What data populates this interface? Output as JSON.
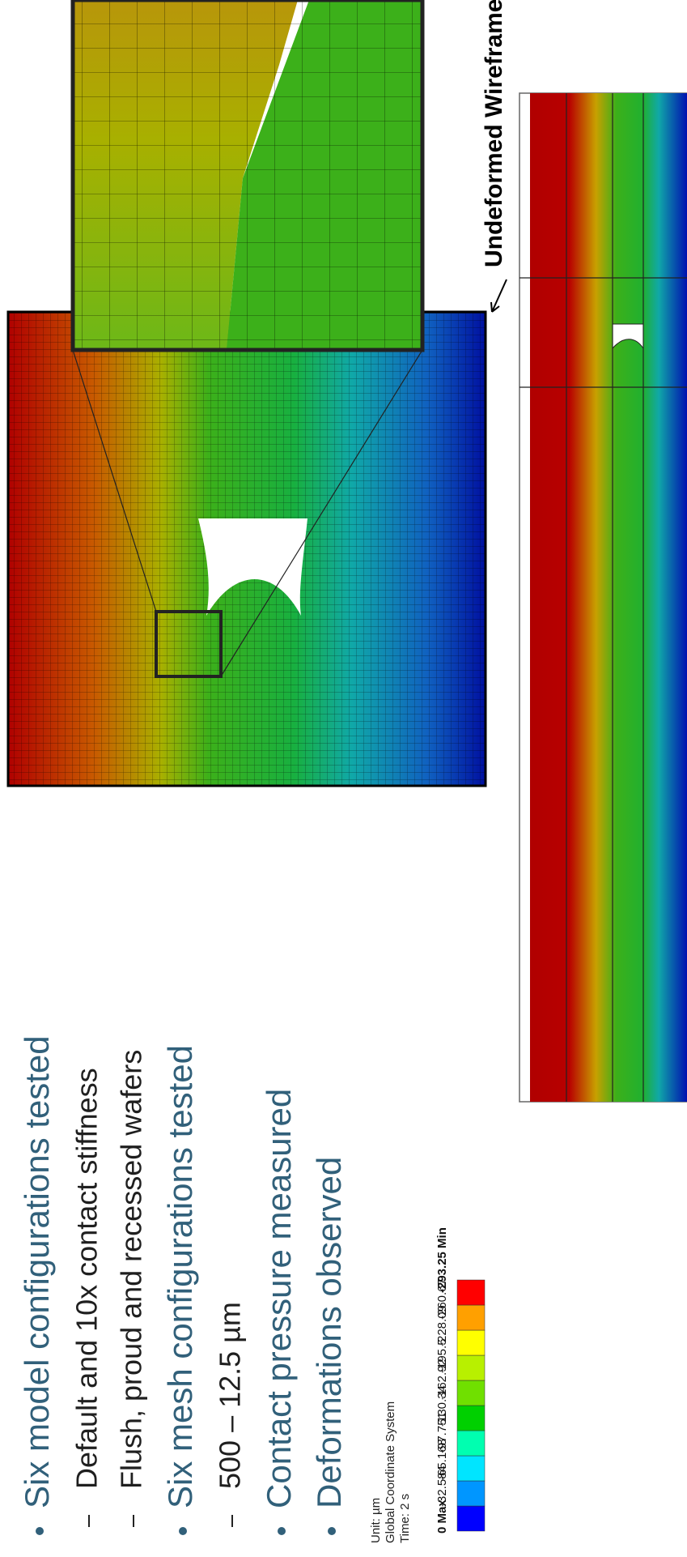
{
  "bullets": [
    {
      "text": "Six model configurations tested",
      "level": 1
    },
    {
      "text": "Default and 10x contact stiffness",
      "level": 2
    },
    {
      "text": "Flush, proud and recessed wafers",
      "level": 2
    },
    {
      "text": "Six mesh configurations tested",
      "level": 1
    },
    {
      "text": "500 – 12.5 µm",
      "level": 2
    },
    {
      "text": "Contact pressure measured",
      "level": 1
    },
    {
      "text": "Deformations observed",
      "level": 1
    }
  ],
  "info": [
    "Unit: µm",
    "Global Coordinate System",
    "Time: 2 s"
  ],
  "legend": {
    "labels": [
      "0 Max",
      "-32.584",
      "-65.168",
      "-97.751",
      "-130.34",
      "-162.92",
      "-195.5",
      "-228.09",
      "-260.67",
      "-293.25 Min"
    ]
  },
  "annotation": "Undeformed Wireframe"
}
